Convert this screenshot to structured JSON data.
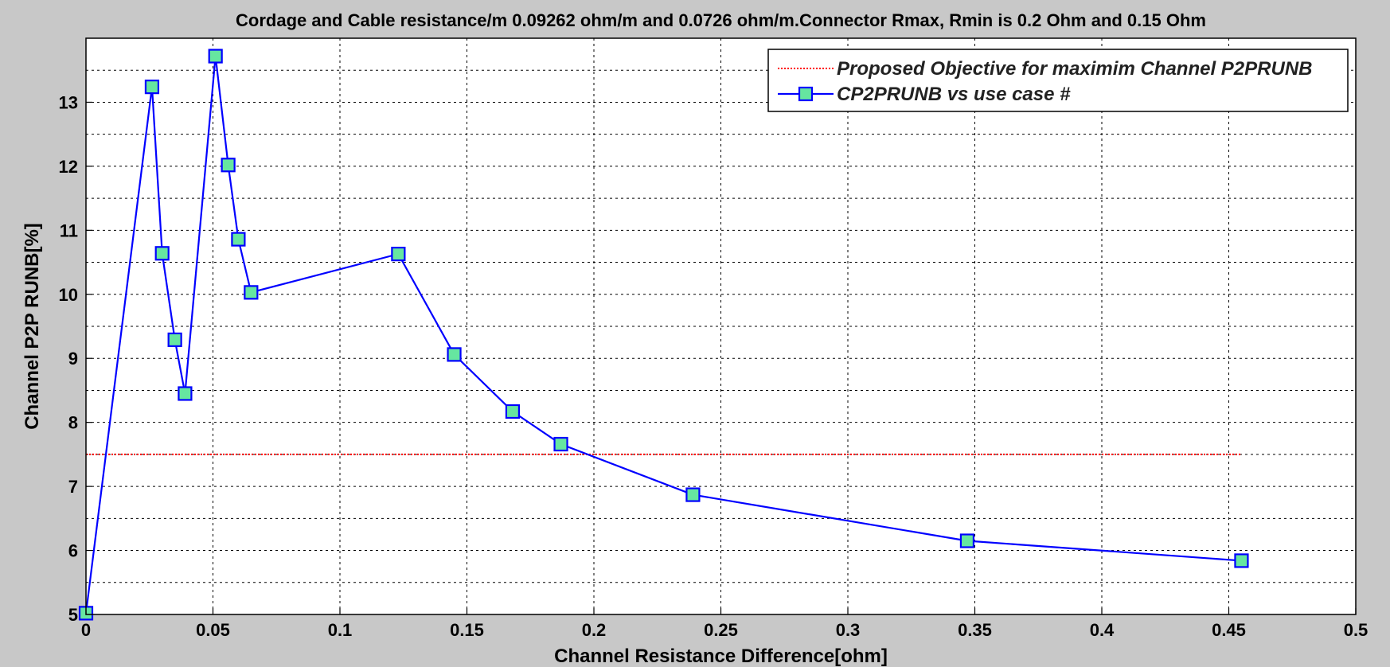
{
  "chart_data": {
    "type": "line",
    "title": "Cordage and Cable resistance/m 0.09262 ohm/m and 0.0726 ohm/m.Connector Rmax, Rmin is 0.2 Ohm and 0.15 Ohm",
    "xlabel": "Channel Resistance Difference[ohm]",
    "ylabel": "Channel P2P RUNB[%]",
    "xlim": [
      0,
      0.5
    ],
    "ylim": [
      5,
      14
    ],
    "xticks": [
      0,
      0.05,
      0.1,
      0.15,
      0.2,
      0.25,
      0.3,
      0.35,
      0.4,
      0.45,
      0.5
    ],
    "xtick_labels": [
      "0",
      "0.05",
      "0.1",
      "0.15",
      "0.2",
      "0.25",
      "0.3",
      "0.35",
      "0.4",
      "0.45",
      "0.5"
    ],
    "yticks": [
      5,
      6,
      7,
      8,
      9,
      10,
      11,
      12,
      13
    ],
    "ytick_labels": [
      "5",
      "6",
      "7",
      "8",
      "9",
      "10",
      "11",
      "12",
      "13"
    ],
    "grid": true,
    "legend_position": "top-right",
    "series": [
      {
        "name": "Proposed Objective for maximim Channel P2PRUNB",
        "style": "dotted",
        "color": "#ff0000",
        "x": [
          0,
          0.455
        ],
        "y": [
          7.5,
          7.5
        ]
      },
      {
        "name": "CP2PRUNB vs use case #",
        "style": "line-square-markers",
        "color": "#0000ff",
        "marker_fill": "#66e6a0",
        "x": [
          0,
          0.026,
          0.03,
          0.035,
          0.039,
          0.051,
          0.056,
          0.06,
          0.065,
          0.123,
          0.145,
          0.168,
          0.187,
          0.239,
          0.347,
          0.455
        ],
        "y": [
          5.02,
          13.24,
          10.64,
          9.29,
          8.45,
          13.72,
          12.02,
          10.86,
          10.03,
          10.63,
          9.06,
          8.17,
          7.66,
          6.87,
          6.15,
          5.84
        ]
      }
    ]
  }
}
